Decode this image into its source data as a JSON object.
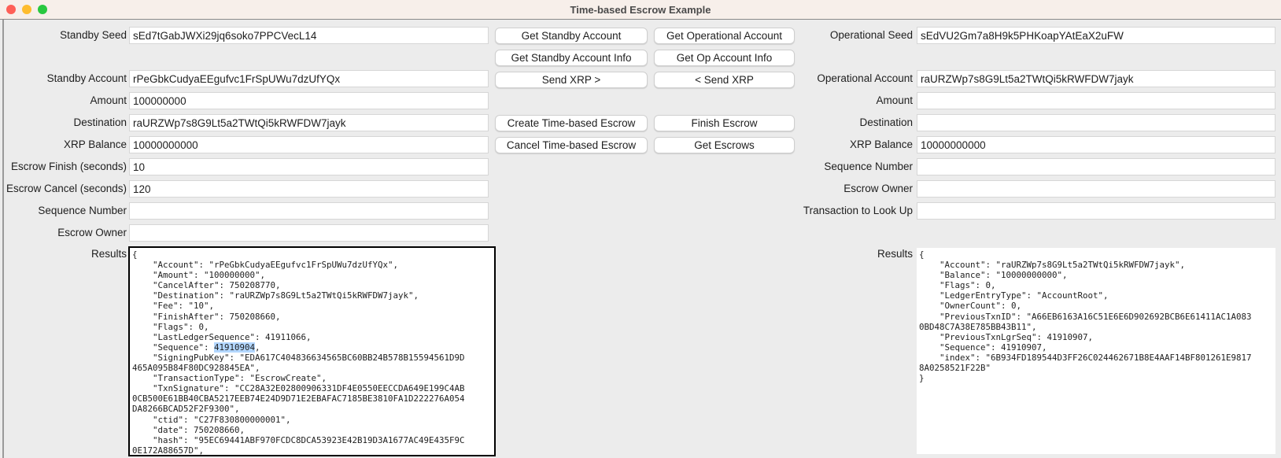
{
  "window": {
    "title": "Time-based Escrow Example",
    "traffic_lights": {
      "close": "#fe5f57",
      "minimize": "#febc2e",
      "maximize": "#28c840"
    }
  },
  "standby": {
    "fields": [
      {
        "label": "Standby Seed",
        "value": "sEd7tGabJWXi29jq6soko7PPCVecL14"
      },
      {
        "label": "Standby Account",
        "value": "rPeGbkCudyaEEgufvc1FrSpUWu7dzUfYQx"
      },
      {
        "label": "Amount",
        "value": "100000000"
      },
      {
        "label": "Destination",
        "value": "raURZWp7s8G9Lt5a2TWtQi5kRWFDW7jayk"
      },
      {
        "label": "XRP Balance",
        "value": "10000000000"
      },
      {
        "label": "Escrow Finish (seconds)",
        "value": "10"
      },
      {
        "label": "Escrow Cancel (seconds)",
        "value": "120"
      },
      {
        "label": "Sequence Number",
        "value": ""
      },
      {
        "label": "Escrow Owner",
        "value": ""
      }
    ],
    "results_label": "Results",
    "results_highlight": {
      "line": 9,
      "text": "41910904"
    },
    "results_lines": [
      "{",
      "    \"Account\": \"rPeGbkCudyaEEgufvc1FrSpUWu7dzUfYQx\",",
      "    \"Amount\": \"100000000\",",
      "    \"CancelAfter\": 750208770,",
      "    \"Destination\": \"raURZWp7s8G9Lt5a2TWtQi5kRWFDW7jayk\",",
      "    \"Fee\": \"10\",",
      "    \"FinishAfter\": 750208660,",
      "    \"Flags\": 0,",
      "    \"LastLedgerSequence\": 41911066,",
      "    \"Sequence\": 41910904,",
      "    \"SigningPubKey\": \"EDA617C404836634565BC60BB24B578B15594561D9D",
      "465A095B84F80DC928845EA\",",
      "    \"TransactionType\": \"EscrowCreate\",",
      "    \"TxnSignature\": \"CC28A32E02800906331DF4E0550EECCDA649E199C4AB",
      "0CB500E61BB40CBA5217EEB74E24D9D71E2EBAFAC7185BE3810FA1D222276A054",
      "DA8266BCAD52F2F9300\",",
      "    \"ctid\": \"C27F830800000001\",",
      "    \"date\": 750208660,",
      "    \"hash\": \"95EC69441ABF970FCDC8DCA53923E42B19D3A1677AC49E435F9C",
      "0E172A88657D\","
    ]
  },
  "buttons": {
    "get_standby_account": "Get Standby Account",
    "get_operational_account": "Get Operational Account",
    "get_standby_account_info": "Get Standby Account Info",
    "get_op_account_info": "Get Op Account Info",
    "send_xrp_right": "Send XRP >",
    "send_xrp_left": "< Send XRP",
    "create_escrow": "Create Time-based Escrow",
    "finish_escrow": "Finish Escrow",
    "cancel_escrow": "Cancel Time-based Escrow",
    "get_escrows": "Get Escrows"
  },
  "operational": {
    "fields": [
      {
        "label": "Operational Seed",
        "value": "sEdVU2Gm7a8H9k5PHKoapYAtEaX2uFW"
      },
      {
        "label": "Operational Account",
        "value": "raURZWp7s8G9Lt5a2TWtQi5kRWFDW7jayk"
      },
      {
        "label": "Amount",
        "value": ""
      },
      {
        "label": "Destination",
        "value": ""
      },
      {
        "label": "XRP Balance",
        "value": "10000000000"
      },
      {
        "label": "Sequence Number",
        "value": ""
      },
      {
        "label": "Escrow Owner",
        "value": ""
      },
      {
        "label": "Transaction to Look Up",
        "value": ""
      }
    ],
    "results_label": "Results",
    "results_lines": [
      "{",
      "    \"Account\": \"raURZWp7s8G9Lt5a2TWtQi5kRWFDW7jayk\",",
      "    \"Balance\": \"10000000000\",",
      "    \"Flags\": 0,",
      "    \"LedgerEntryType\": \"AccountRoot\",",
      "    \"OwnerCount\": 0,",
      "    \"PreviousTxnID\": \"A66EB6163A16C51E6E6D902692BCB6E61411AC1A083",
      "0BD48C7A38E785BB43B11\",",
      "    \"PreviousTxnLgrSeq\": 41910907,",
      "    \"Sequence\": 41910907,",
      "    \"index\": \"6B934FD189544D3FF26C024462671B8E4AAF14BF801261E9817",
      "8A0258521F22B\"",
      "}"
    ]
  }
}
